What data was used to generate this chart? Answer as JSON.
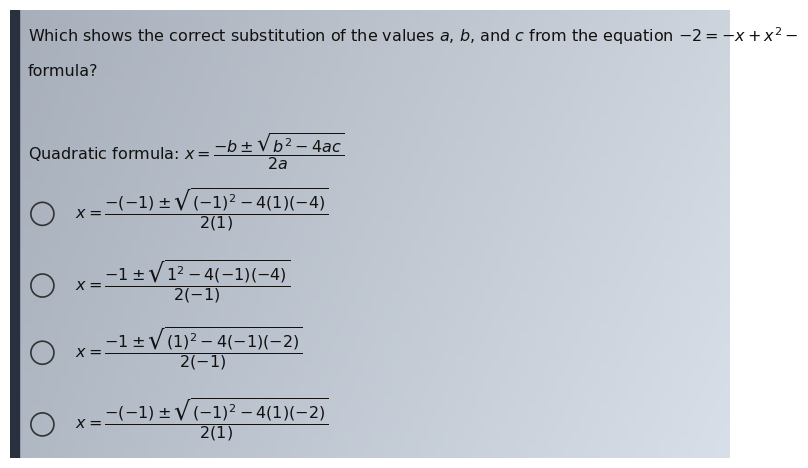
{
  "bg_color_left": "#b0b8c4",
  "bg_color_right": "#d8dfe8",
  "text_color": "#111111",
  "title_line1": "Which shows the correct substitution of the values $a$, $b$, and $c$ from the equation $-2 = -x + x^2 -$",
  "title_line2": "formula?",
  "quadratic_label": "Quadratic formula: $x = \\dfrac{-b \\pm \\sqrt{b^2 - 4ac}}{2a}$",
  "options": [
    "$x = \\dfrac{-(-1) \\pm \\sqrt{(-1)^2 - 4(1)(-4)}}{2(1)}$",
    "$x = \\dfrac{-1 \\pm \\sqrt{1^2 - 4(-1)(-4)}}{2(-1)}$",
    "$x = \\dfrac{-1 \\pm \\sqrt{(1)^2 - 4(-1)(-2)}}{2(-1)}$",
    "$x = \\dfrac{-(-1) \\pm \\sqrt{(-1)^2 - 4(1)(-2)}}{2(1)}$"
  ],
  "font_size_title": 11.5,
  "font_size_formula": 11.5,
  "font_size_options": 11.5,
  "circle_color": "#333333",
  "left_bar_color": "#2a3040"
}
